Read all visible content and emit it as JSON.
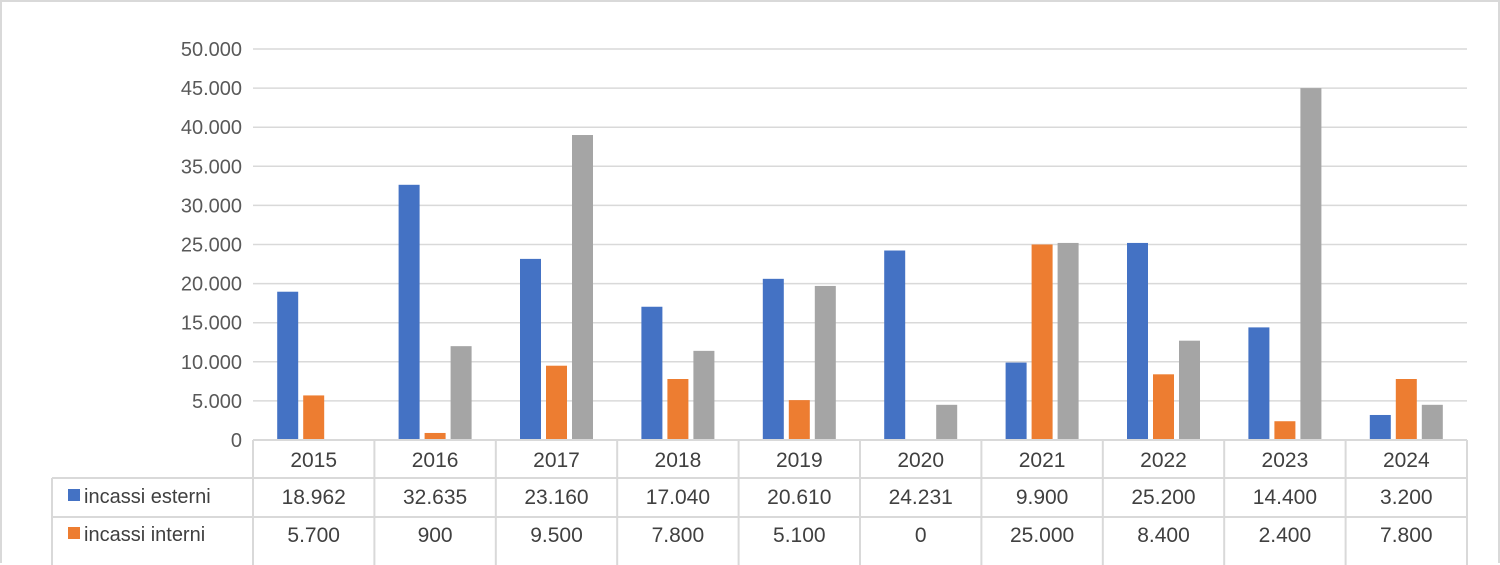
{
  "chart_data": {
    "type": "bar",
    "title": "",
    "xlabel": "",
    "ylabel": "",
    "ylim": [
      0,
      50000
    ],
    "ytick_step": 5000,
    "ytick_labels": [
      "0",
      "5.000",
      "10.000",
      "15.000",
      "20.000",
      "25.000",
      "30.000",
      "35.000",
      "40.000",
      "45.000",
      "50.000"
    ],
    "grid": true,
    "legend_position": "data-table",
    "categories": [
      "2015",
      "2016",
      "2017",
      "2018",
      "2019",
      "2020",
      "2021",
      "2022",
      "2023",
      "2024"
    ],
    "series": [
      {
        "name": "incassi esterni",
        "color": "#4472c4",
        "values": [
          18962,
          32635,
          23160,
          17040,
          20610,
          24231,
          9900,
          25200,
          14400,
          3200
        ],
        "labels": [
          "18.962",
          "32.635",
          "23.160",
          "17.040",
          "20.610",
          "24.231",
          "9.900",
          "25.200",
          "14.400",
          "3.200"
        ]
      },
      {
        "name": "incassi interni",
        "color": "#ed7d31",
        "values": [
          5700,
          900,
          9500,
          7800,
          5100,
          0,
          25000,
          8400,
          2400,
          7800
        ],
        "labels": [
          "5.700",
          "900",
          "9.500",
          "7.800",
          "5.100",
          "0",
          "25.000",
          "8.400",
          "2.400",
          "7.800"
        ]
      },
      {
        "name": "",
        "color": "#a5a5a5",
        "values": [
          0,
          12000,
          39000,
          11400,
          19700,
          4500,
          25200,
          12700,
          45000,
          4500
        ],
        "labels": []
      }
    ]
  }
}
